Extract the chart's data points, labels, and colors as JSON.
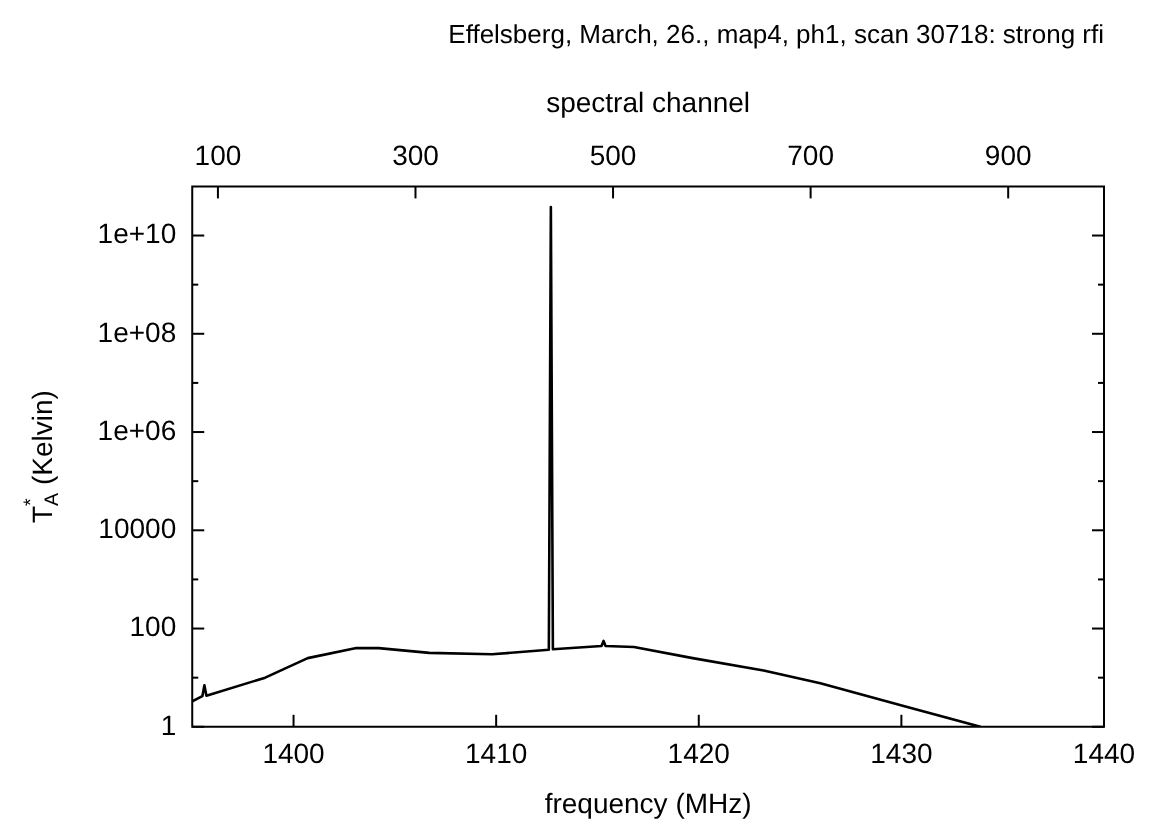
{
  "chart_data": {
    "type": "line",
    "title": "Effelsberg, March, 26., map4, ph1, scan 30718: strong rfi",
    "xlabel": "frequency (MHz)",
    "x2label": "spectral channel",
    "ylabel": "T$_{A}$$^{*}$ (Kelvin)",
    "x": [
      1395.0,
      1395.5,
      1395.6,
      1395.7,
      1398.6,
      1400.7,
      1403.1,
      1404.2,
      1406.7,
      1409.8,
      1412.6,
      1412.7,
      1412.8,
      1415.2,
      1415.3,
      1415.4,
      1416.8,
      1419.7,
      1423.2,
      1426.0,
      1430.2,
      1433.9
    ],
    "series": [
      {
        "color": "#000000",
        "values": [
          3.3,
          4.2,
          7,
          4.3,
          10,
          25,
          40,
          40,
          32,
          30,
          37,
          38000000000,
          38,
          44,
          56,
          44,
          42,
          25,
          14,
          7.7,
          2.6,
          1
        ]
      }
    ],
    "xlim": [
      1395,
      1440
    ],
    "xticks": [
      1400,
      1410,
      1420,
      1430,
      1440
    ],
    "x2lim": [
      74,
      997
    ],
    "x2ticks": [
      100,
      300,
      500,
      700,
      900
    ],
    "ylim": [
      1,
      100000000000
    ],
    "yticks": [
      1,
      {
        "value": 10,
        "label": null
      },
      100,
      {
        "value": 1000,
        "label": null
      },
      10000,
      {
        "value": 100000,
        "label": null
      },
      {
        "value": 1000000,
        "label": "1e+06"
      },
      {
        "value": 10000000,
        "label": null
      },
      {
        "value": 100000000,
        "label": "1e+08"
      },
      {
        "value": 1000000000,
        "label": null
      },
      {
        "value": 10000000000,
        "label": "1e+10"
      }
    ],
    "log": "y",
    "grid": false,
    "legend": false,
    "marker": "none"
  }
}
